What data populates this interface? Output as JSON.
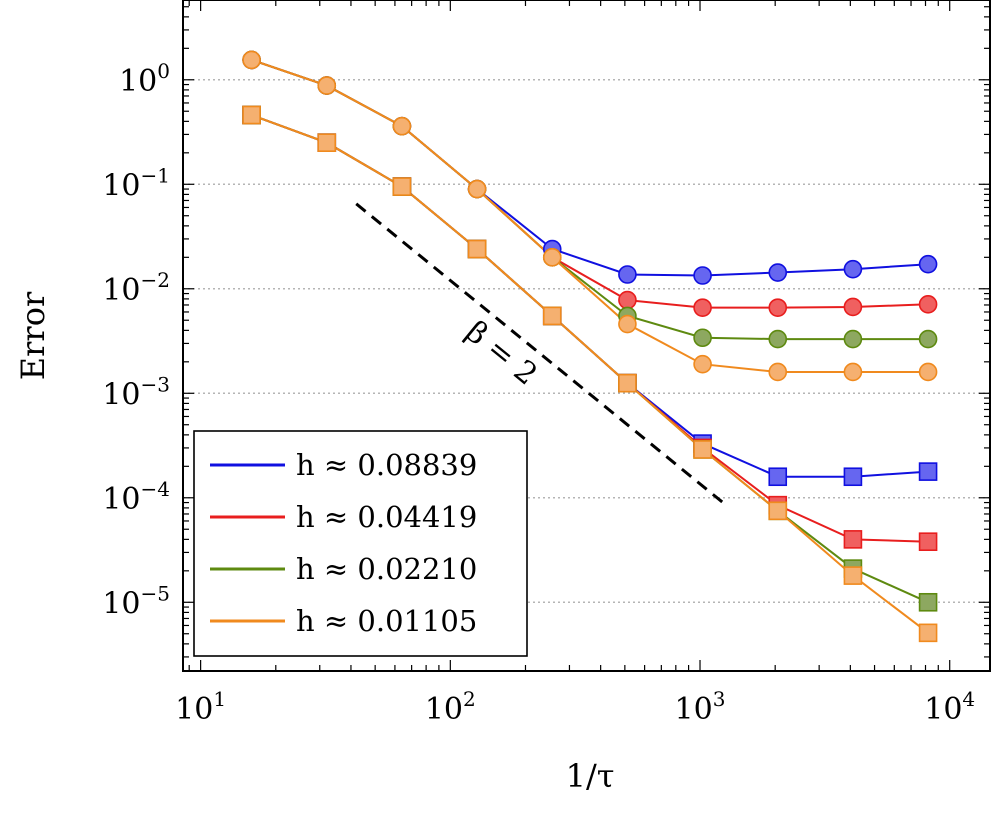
{
  "chart_data": {
    "type": "line",
    "xscale": "log",
    "yscale": "log",
    "xlabel": "1/τ",
    "ylabel": "Error",
    "xlim": [
      8.5,
      14500
    ],
    "ylim": [
      2.2e-06,
      5.8
    ],
    "x_ticks": [
      {
        "base": "10",
        "exp": "1",
        "value": 10
      },
      {
        "base": "10",
        "exp": "2",
        "value": 100
      },
      {
        "base": "10",
        "exp": "3",
        "value": 1000
      },
      {
        "base": "10",
        "exp": "4",
        "value": 10000
      }
    ],
    "y_ticks": [
      {
        "base": "10",
        "exp": "0",
        "value": 1
      },
      {
        "base": "10",
        "exp": "−1",
        "value": 0.1
      },
      {
        "base": "10",
        "exp": "−2",
        "value": 0.01
      },
      {
        "base": "10",
        "exp": "−3",
        "value": 0.001
      },
      {
        "base": "10",
        "exp": "−4",
        "value": 0.0001
      },
      {
        "base": "10",
        "exp": "−5",
        "value": 1e-05
      }
    ],
    "grid": "y-major-dotted",
    "legend_position": "bottom-left",
    "x": [
      16,
      32,
      64,
      128,
      256,
      512,
      1024,
      2048,
      4096,
      8192
    ],
    "series": [
      {
        "name": "h ≈ 0.08839",
        "color": "#1010e0",
        "fill": "#6666f0",
        "circle": [
          1.55,
          0.88,
          0.36,
          0.09,
          0.024,
          0.0137,
          0.0134,
          0.0143,
          0.0154,
          0.0172
        ],
        "square": [
          0.46,
          0.25,
          0.095,
          0.024,
          0.0055,
          0.00125,
          0.00033,
          0.000159,
          0.000159,
          0.000178
        ]
      },
      {
        "name": "h ≈ 0.04419",
        "color": "#e81e1e",
        "fill": "#f06060",
        "circle": [
          1.55,
          0.88,
          0.36,
          0.09,
          0.02,
          0.0078,
          0.0066,
          0.0066,
          0.0067,
          0.0071
        ],
        "square": [
          0.46,
          0.25,
          0.095,
          0.024,
          0.0055,
          0.00125,
          0.0003,
          8.5e-05,
          4e-05,
          3.8e-05
        ]
      },
      {
        "name": "h ≈ 0.02210",
        "color": "#5e8a10",
        "fill": "#8da860",
        "circle": [
          1.55,
          0.88,
          0.36,
          0.09,
          0.02,
          0.0055,
          0.0034,
          0.0033,
          0.0033,
          0.0033
        ],
        "square": [
          0.46,
          0.25,
          0.095,
          0.024,
          0.0055,
          0.00125,
          0.00029,
          7.5e-05,
          2.1e-05,
          1e-05
        ]
      },
      {
        "name": "h ≈ 0.01105",
        "color": "#f08a1e",
        "fill": "#f5b070",
        "circle": [
          1.55,
          0.88,
          0.36,
          0.09,
          0.02,
          0.0046,
          0.0019,
          0.0016,
          0.0016,
          0.0016
        ],
        "square": [
          0.46,
          0.25,
          0.095,
          0.024,
          0.0055,
          0.00125,
          0.00029,
          7.5e-05,
          1.8e-05,
          5.1e-06
        ]
      }
    ],
    "slope_annotation": {
      "label": "β = 2",
      "x1": 42,
      "y1": 0.065,
      "x2": 1280,
      "y2": 8.4e-05
    }
  }
}
